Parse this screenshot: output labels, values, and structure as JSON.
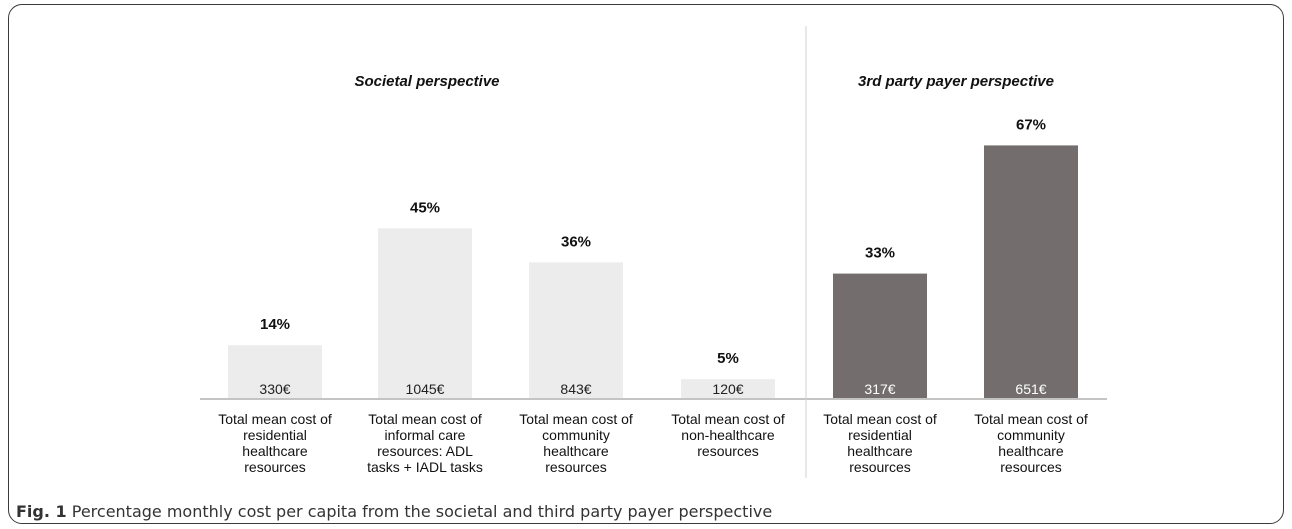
{
  "figure": {
    "caption_label": "Fig. 1",
    "caption_text": "Percentage monthly cost per capita from the societal and third party payer perspective"
  },
  "chart_data": {
    "type": "bar",
    "ylim": [
      0,
      100
    ],
    "grid": false,
    "colors": {
      "societal": "#ececec",
      "third_party": "#736e6d",
      "divider": "#d0d0d0",
      "axis": "#888888"
    },
    "panels": [
      {
        "title": "Societal perspective",
        "color_key": "societal",
        "value_label_color": "#222222",
        "categories": [
          [
            "Total mean cost of",
            "residential",
            "healthcare",
            "resources"
          ],
          [
            "Total mean cost of",
            "informal care",
            "resources: ADL",
            "tasks + IADL tasks"
          ],
          [
            "Total mean cost of",
            "community",
            "healthcare",
            "resources"
          ],
          [
            "Total mean cost of",
            "non-healthcare",
            "resources"
          ]
        ],
        "percent": [
          14,
          45,
          36,
          5
        ],
        "percent_labels": [
          "14%",
          "45%",
          "36%",
          "5%"
        ],
        "cost_labels": [
          "330€",
          "1045€",
          "843€",
          "120€"
        ]
      },
      {
        "title": "3rd party payer perspective",
        "color_key": "third_party",
        "value_label_color": "#ffffff",
        "categories": [
          [
            "Total mean cost of",
            "residential",
            "healthcare",
            "resources"
          ],
          [
            "Total mean cost of",
            "community",
            "healthcare",
            "resources"
          ]
        ],
        "percent": [
          33,
          67
        ],
        "percent_labels": [
          "33%",
          "67%"
        ],
        "cost_labels": [
          "317€",
          "651€"
        ]
      }
    ]
  }
}
